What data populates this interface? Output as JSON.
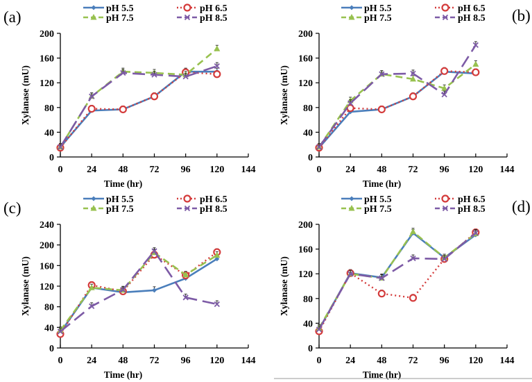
{
  "colors": {
    "pH 5.5": "#4a7ebb",
    "pH 6.5": "#d43b3b",
    "pH 7.5": "#98c14f",
    "pH 8.5": "#7d5ba6"
  },
  "chart_data": [
    {
      "type": "line",
      "panel_label": "(a)",
      "xlabel": "Time (hr)",
      "ylabel": "Xylanase (mU)",
      "x": [
        0,
        24,
        48,
        72,
        96,
        120
      ],
      "xlim": [
        0,
        144
      ],
      "xticks": [
        "0",
        "24",
        "48",
        "72",
        "96",
        "120",
        "144"
      ],
      "ylim": [
        0,
        200
      ],
      "yticks": [
        "0",
        "40",
        "80",
        "120",
        "160",
        "200"
      ],
      "legend": "top",
      "series": [
        {
          "name": "pH 5.5",
          "values": [
            16,
            75,
            77,
            98,
            138,
            138
          ]
        },
        {
          "name": "pH 6.5",
          "values": [
            15,
            78,
            77,
            98,
            137,
            134
          ]
        },
        {
          "name": "pH 7.5",
          "values": [
            16,
            98,
            138,
            136,
            133,
            175
          ]
        },
        {
          "name": "pH 8.5",
          "values": [
            16,
            98,
            136,
            133,
            130,
            147
          ]
        }
      ]
    },
    {
      "type": "line",
      "panel_label": "(b)",
      "xlabel": "Time (hr)",
      "ylabel": "Xylanase (mU)",
      "x": [
        0,
        24,
        48,
        72,
        96,
        120
      ],
      "xlim": [
        0,
        144
      ],
      "xticks": [
        "0",
        "24",
        "48",
        "72",
        "96",
        "120",
        "144"
      ],
      "ylim": [
        0,
        200
      ],
      "yticks": [
        "0",
        "40",
        "80",
        "120",
        "160",
        "200"
      ],
      "legend": "top",
      "series": [
        {
          "name": "pH 5.5",
          "values": [
            15,
            73,
            77,
            98,
            138,
            135
          ]
        },
        {
          "name": "pH 6.5",
          "values": [
            15,
            79,
            77,
            98,
            139,
            137
          ]
        },
        {
          "name": "pH 7.5",
          "values": [
            16,
            91,
            134,
            126,
            111,
            150
          ]
        },
        {
          "name": "pH 8.5",
          "values": [
            16,
            87,
            134,
            135,
            101,
            181
          ]
        }
      ]
    },
    {
      "type": "line",
      "panel_label": "(c)",
      "xlabel": "Time (hr)",
      "ylabel": "Xylanase (mU)",
      "x": [
        0,
        24,
        48,
        72,
        96,
        120
      ],
      "xlim": [
        0,
        144
      ],
      "xticks": [
        "0",
        "24",
        "48",
        "72",
        "96",
        "120",
        "144"
      ],
      "ylim": [
        0,
        240
      ],
      "yticks": [
        "0",
        "40",
        "80",
        "120",
        "160",
        "200",
        "240"
      ],
      "legend": "top",
      "series": [
        {
          "name": "pH 5.5",
          "values": [
            30,
            117,
            108,
            112,
            135,
            173
          ]
        },
        {
          "name": "pH 6.5",
          "values": [
            27,
            122,
            110,
            181,
            141,
            186
          ]
        },
        {
          "name": "pH 7.5",
          "values": [
            34,
            117,
            112,
            185,
            142,
            180
          ]
        },
        {
          "name": "pH 8.5",
          "values": [
            32,
            81,
            113,
            188,
            98,
            85
          ]
        }
      ]
    },
    {
      "type": "line",
      "panel_label": "(d)",
      "xlabel": "Time (hr)",
      "ylabel": "Xylanase (mU)",
      "x": [
        0,
        24,
        48,
        72,
        96,
        120
      ],
      "xlim": [
        0,
        144
      ],
      "xticks": [
        "0",
        "24",
        "48",
        "72",
        "96",
        "120",
        "144"
      ],
      "ylim": [
        0,
        200
      ],
      "yticks": [
        "0",
        "40",
        "80",
        "120",
        "160",
        "200"
      ],
      "legend": "top",
      "series": [
        {
          "name": "pH 5.5",
          "values": [
            30,
            121,
            114,
            186,
            146,
            183
          ]
        },
        {
          "name": "pH 6.5",
          "values": [
            27,
            121,
            88,
            81,
            144,
            187
          ]
        },
        {
          "name": "pH 7.5",
          "values": [
            32,
            120,
            113,
            188,
            146,
            185
          ]
        },
        {
          "name": "pH 8.5",
          "values": [
            30,
            120,
            113,
            145,
            144,
            186
          ]
        }
      ]
    }
  ]
}
